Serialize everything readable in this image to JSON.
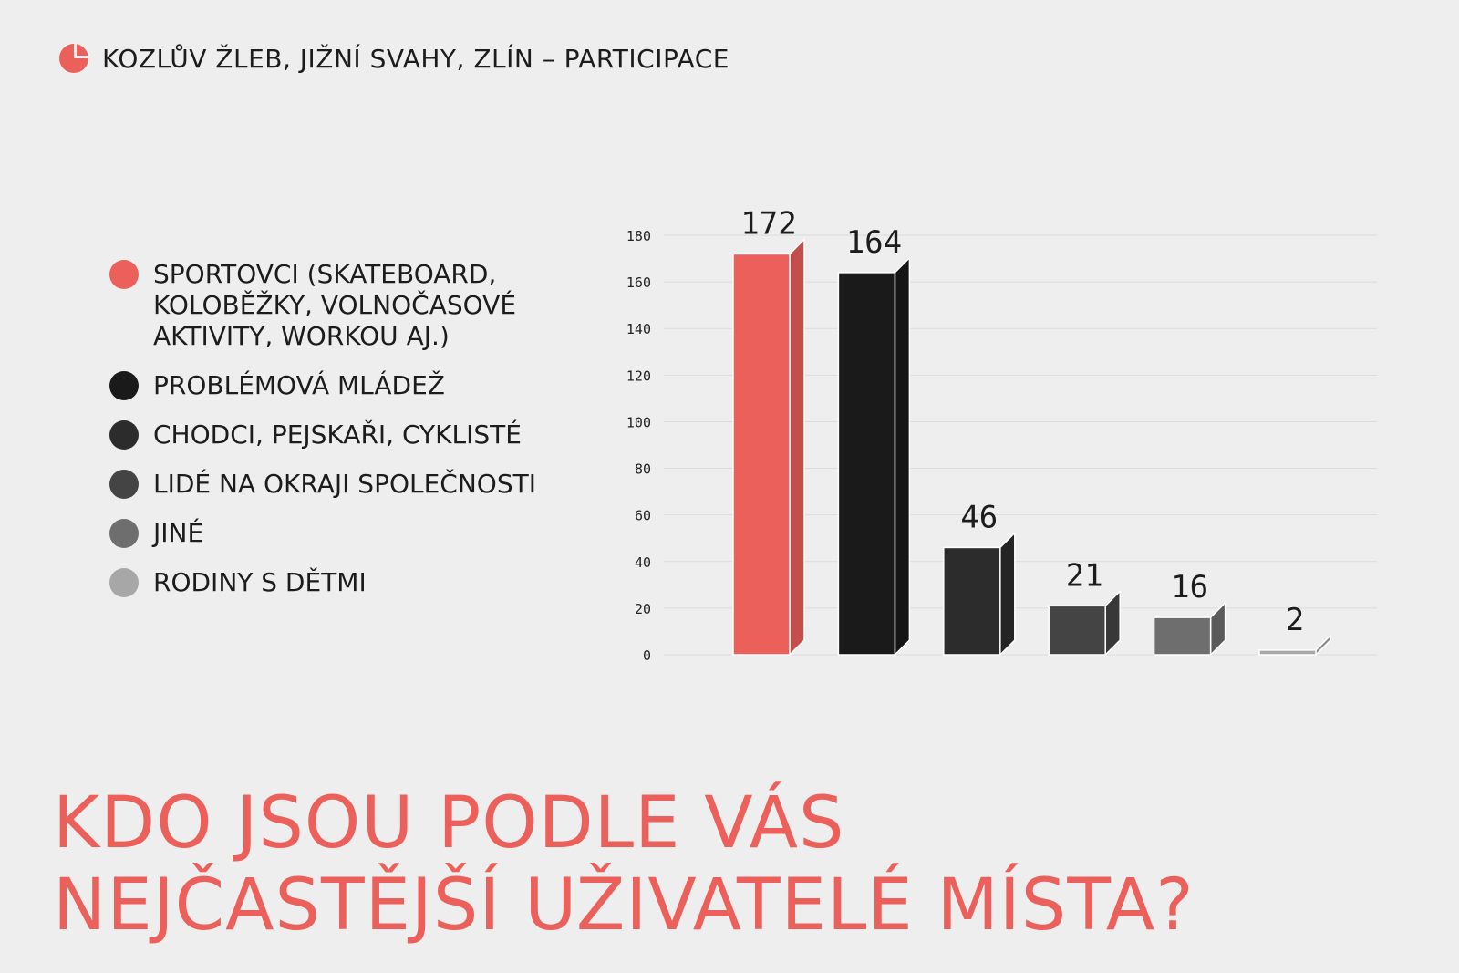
{
  "header": {
    "title": "KOZLŮV ŽLEB, JIŽNÍ SVAHY, ZLÍN – PARTICIPACE",
    "icon": "pie-chart-icon",
    "icon_color": "#ec605b"
  },
  "legend": {
    "items": [
      {
        "lines": [
          "SPORTOVCI (SKATEBOARD,",
          "KOLOBĚŽKY, VOLNOČASOVÉ",
          "AKTIVITY, WORKOU AJ.)"
        ],
        "color": "#ec605b"
      },
      {
        "lines": [
          "PROBLÉMOVÁ MLÁDEŽ"
        ],
        "color": "#1a1a1a"
      },
      {
        "lines": [
          "CHODCI, PEJSKAŘI, CYKLISTÉ"
        ],
        "color": "#2c2c2c"
      },
      {
        "lines": [
          "LIDÉ NA OKRAJI SPOLEČNOSTI"
        ],
        "color": "#444444"
      },
      {
        "lines": [
          "JINÉ"
        ],
        "color": "#6e6e6e"
      },
      {
        "lines": [
          "RODINY S DĚTMI"
        ],
        "color": "#a7a7a7"
      }
    ]
  },
  "chart_data": {
    "type": "bar",
    "title": "",
    "xlabel": "",
    "ylabel": "",
    "ylim": [
      0,
      180
    ],
    "yticks": [
      0,
      20,
      40,
      60,
      80,
      100,
      120,
      140,
      160,
      180
    ],
    "grid": true,
    "categories": [
      "SPORTOVCI (SKATEBOARD, KOLOBĚŽKY, VOLNOČASOVÉ AKTIVITY, WORKOU AJ.)",
      "PROBLÉMOVÁ MLÁDEŽ",
      "CHODCI, PEJSKAŘI, CYKLISTÉ",
      "LIDÉ NA OKRAJI SPOLEČNOSTI",
      "JINÉ",
      "RODINY S DĚTMI"
    ],
    "values": [
      172,
      164,
      46,
      21,
      16,
      2
    ],
    "colors": [
      "#ec605b",
      "#1a1a1a",
      "#2c2c2c",
      "#444444",
      "#6e6e6e",
      "#a7a7a7"
    ],
    "data_labels": [
      "172",
      "164",
      "46",
      "21",
      "16",
      "2"
    ]
  },
  "footer": {
    "question_lines": [
      "KDO JSOU PODLE VÁS",
      "NEJČASTĚJŠÍ UŽIVATELÉ MÍSTA?"
    ]
  }
}
